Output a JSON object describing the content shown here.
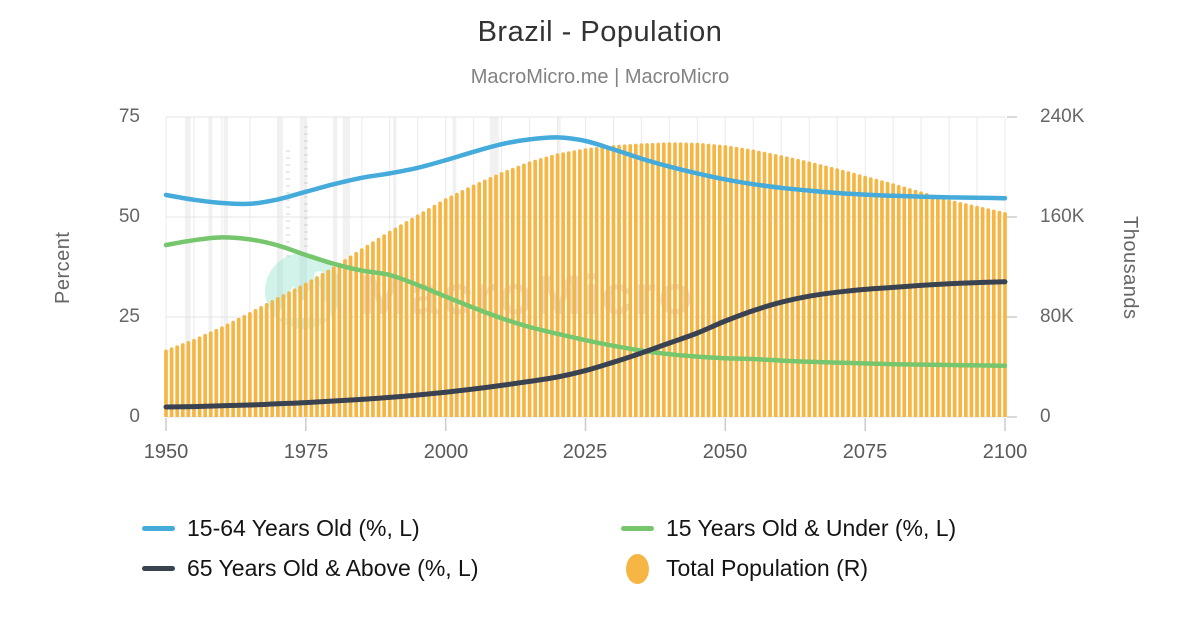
{
  "header": {
    "title": "Brazil - Population",
    "subtitle": "MacroMicro.me | MacroMicro"
  },
  "watermark": {
    "text": "MacroMicro"
  },
  "axes": {
    "left": {
      "title": "Percent",
      "ticks": [
        "75",
        "50",
        "25",
        "0"
      ]
    },
    "right": {
      "title": "Thousands",
      "ticks": [
        "240K",
        "160K",
        "80K",
        "0"
      ]
    },
    "x": {
      "ticks": [
        "1950",
        "1975",
        "2000",
        "2025",
        "2050",
        "2075",
        "2100"
      ]
    }
  },
  "legend": [
    {
      "label": "15-64 Years Old (%, L)",
      "marker": "line",
      "color": "#45ABDB"
    },
    {
      "label": "15 Years Old & Under (%, L)",
      "marker": "line",
      "color": "#76C66D"
    },
    {
      "label": "65 Years Old & Above (%, L)",
      "marker": "line",
      "color": "#394251"
    },
    {
      "label": "Total Population (R)",
      "marker": "oval",
      "color": "#F5B644"
    }
  ],
  "chart_data": {
    "type": "combo",
    "title": "Brazil - Population",
    "x_years": [
      1950,
      1955,
      1960,
      1965,
      1970,
      1975,
      1980,
      1985,
      1990,
      1995,
      2000,
      2005,
      2010,
      2015,
      2020,
      2025,
      2030,
      2035,
      2040,
      2045,
      2050,
      2055,
      2060,
      2065,
      2070,
      2075,
      2080,
      2085,
      2090,
      2095,
      2100
    ],
    "series": [
      {
        "name": "15-64 Years Old (%, L)",
        "type": "line",
        "axis": "left",
        "unit": "percent",
        "color": "#45ABDB",
        "values": [
          55.5,
          54.3,
          53.5,
          53.3,
          54.4,
          56.3,
          58.2,
          59.8,
          60.9,
          62.3,
          64.2,
          66.3,
          68.2,
          69.4,
          69.9,
          69.0,
          66.9,
          64.6,
          62.6,
          60.9,
          59.4,
          58.2,
          57.3,
          56.6,
          56.0,
          55.6,
          55.3,
          55.1,
          54.9,
          54.8,
          54.7
        ]
      },
      {
        "name": "15 Years Old & Under (%, L)",
        "type": "line",
        "axis": "left",
        "unit": "percent",
        "color": "#76C66D",
        "values": [
          43.0,
          44.2,
          44.9,
          44.4,
          42.9,
          40.5,
          38.3,
          36.6,
          35.5,
          33.0,
          30.1,
          27.3,
          24.7,
          22.5,
          20.8,
          19.2,
          17.8,
          16.6,
          15.7,
          15.1,
          14.7,
          14.5,
          14.1,
          13.8,
          13.6,
          13.4,
          13.2,
          13.1,
          13.0,
          12.9,
          12.8
        ]
      },
      {
        "name": "65 Years Old & Above (%, L)",
        "type": "line",
        "axis": "left",
        "unit": "percent",
        "color": "#394251",
        "values": [
          2.5,
          2.6,
          2.8,
          3.0,
          3.3,
          3.6,
          4.0,
          4.4,
          4.9,
          5.5,
          6.2,
          7.0,
          7.9,
          8.9,
          10.0,
          11.6,
          13.7,
          16.0,
          18.5,
          21.0,
          24.0,
          26.6,
          28.7,
          30.2,
          31.2,
          31.9,
          32.4,
          32.9,
          33.3,
          33.6,
          33.8
        ]
      },
      {
        "name": "Total Population (R)",
        "type": "bar",
        "axis": "right",
        "unit": "thousands",
        "color": "#F5B644",
        "values": [
          54000,
          62500,
          72500,
          84000,
          96000,
          107500,
          120500,
          135000,
          149000,
          162000,
          175000,
          186000,
          196000,
          204500,
          211000,
          215000,
          217500,
          219000,
          219800,
          219500,
          217500,
          214000,
          209500,
          204500,
          199000,
          193000,
          187000,
          180500,
          174000,
          169000,
          164000
        ]
      }
    ],
    "left_axis": {
      "label": "Percent",
      "range": [
        0,
        75
      ],
      "tick_step": 25
    },
    "right_axis": {
      "label": "Thousands",
      "range": [
        0,
        240000
      ],
      "tick_step": 80000
    },
    "x_axis": {
      "range": [
        1950,
        2100
      ],
      "tick_step": 25,
      "bar_interval_years": 1
    },
    "recession_bands_years": [
      [
        1953.4,
        1954.4
      ],
      [
        1957.6,
        1958.3
      ],
      [
        1960.3,
        1961.1
      ],
      [
        1969.9,
        1970.9
      ],
      [
        1973.9,
        1975.2
      ],
      [
        1980.0,
        1980.6
      ],
      [
        1981.6,
        1982.9
      ],
      [
        1990.6,
        1991.2
      ],
      [
        2001.2,
        2001.9
      ],
      [
        2007.9,
        2009.5
      ],
      [
        2020.1,
        2020.4
      ]
    ],
    "grid": true,
    "legend_position": "bottom"
  }
}
